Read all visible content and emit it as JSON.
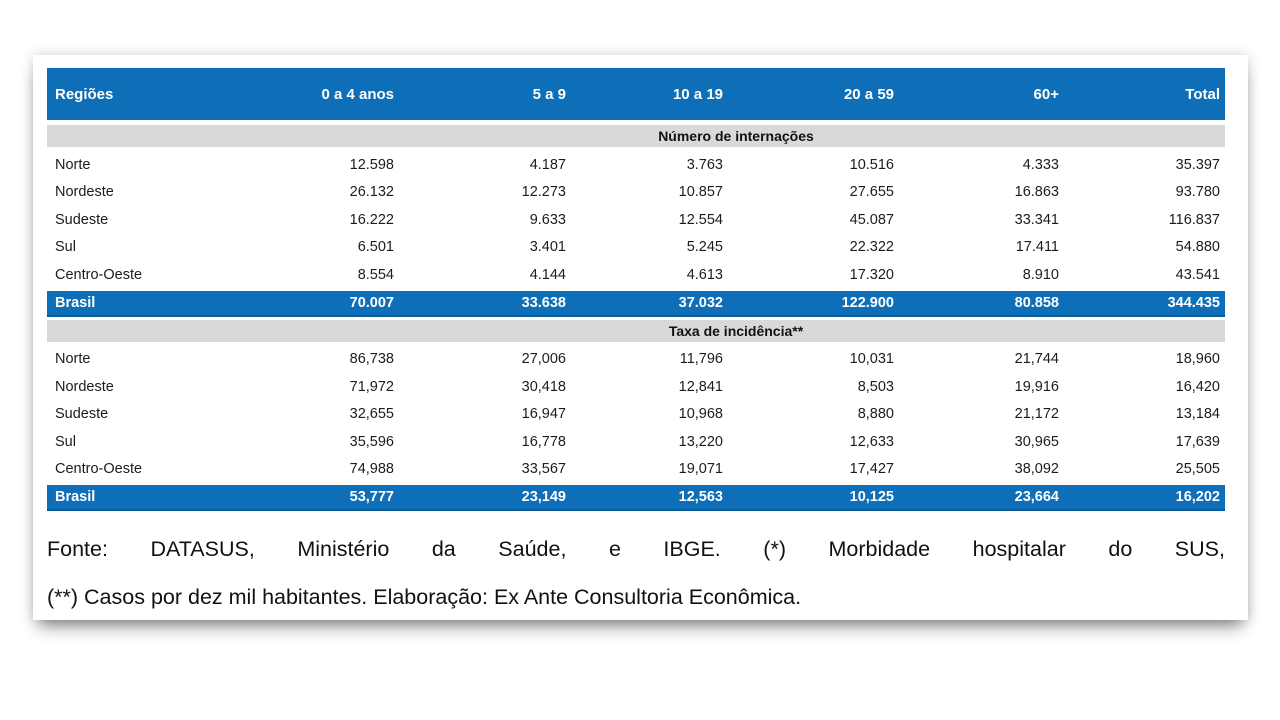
{
  "colors": {
    "header_blue": "#0e6fb8",
    "header_blue_dark": "#0a5a94",
    "band_gray": "#d9d9d9"
  },
  "table": {
    "columns": [
      "Regiões",
      "0 a 4 anos",
      "5 a 9",
      "10 a 19",
      "20 a 59",
      "60+",
      "Total"
    ],
    "sections": [
      {
        "title": "Número de internações",
        "rows": [
          {
            "region": "Norte",
            "values": [
              "12.598",
              "4.187",
              "3.763",
              "10.516",
              "4.333",
              "35.397"
            ]
          },
          {
            "region": "Nordeste",
            "values": [
              "26.132",
              "12.273",
              "10.857",
              "27.655",
              "16.863",
              "93.780"
            ]
          },
          {
            "region": "Sudeste",
            "values": [
              "16.222",
              "9.633",
              "12.554",
              "45.087",
              "33.341",
              "116.837"
            ]
          },
          {
            "region": "Sul",
            "values": [
              "6.501",
              "3.401",
              "5.245",
              "22.322",
              "17.411",
              "54.880"
            ]
          },
          {
            "region": "Centro-Oeste",
            "values": [
              "8.554",
              "4.144",
              "4.613",
              "17.320",
              "8.910",
              "43.541"
            ]
          }
        ],
        "total_row": {
          "region": "Brasil",
          "values": [
            "70.007",
            "33.638",
            "37.032",
            "122.900",
            "80.858",
            "344.435"
          ]
        }
      },
      {
        "title": "Taxa de incidência**",
        "rows": [
          {
            "region": "Norte",
            "values": [
              "86,738",
              "27,006",
              "11,796",
              "10,031",
              "21,744",
              "18,960"
            ]
          },
          {
            "region": "Nordeste",
            "values": [
              "71,972",
              "30,418",
              "12,841",
              "8,503",
              "19,916",
              "16,420"
            ]
          },
          {
            "region": "Sudeste",
            "values": [
              "32,655",
              "16,947",
              "10,968",
              "8,880",
              "21,172",
              "13,184"
            ]
          },
          {
            "region": "Sul",
            "values": [
              "35,596",
              "16,778",
              "13,220",
              "12,633",
              "30,965",
              "17,639"
            ]
          },
          {
            "region": "Centro-Oeste",
            "values": [
              "74,988",
              "33,567",
              "19,071",
              "17,427",
              "38,092",
              "25,505"
            ]
          }
        ],
        "total_row": {
          "region": "Brasil",
          "values": [
            "53,777",
            "23,149",
            "12,563",
            "10,125",
            "23,664",
            "16,202"
          ]
        }
      }
    ]
  },
  "footer": {
    "line1": "Fonte: DATASUS, Ministério da Saúde, e IBGE. (*) Morbidade hospitalar do SUS,",
    "line2": "(**) Casos por dez mil habitantes. Elaboração: Ex Ante Consultoria Econômica."
  }
}
